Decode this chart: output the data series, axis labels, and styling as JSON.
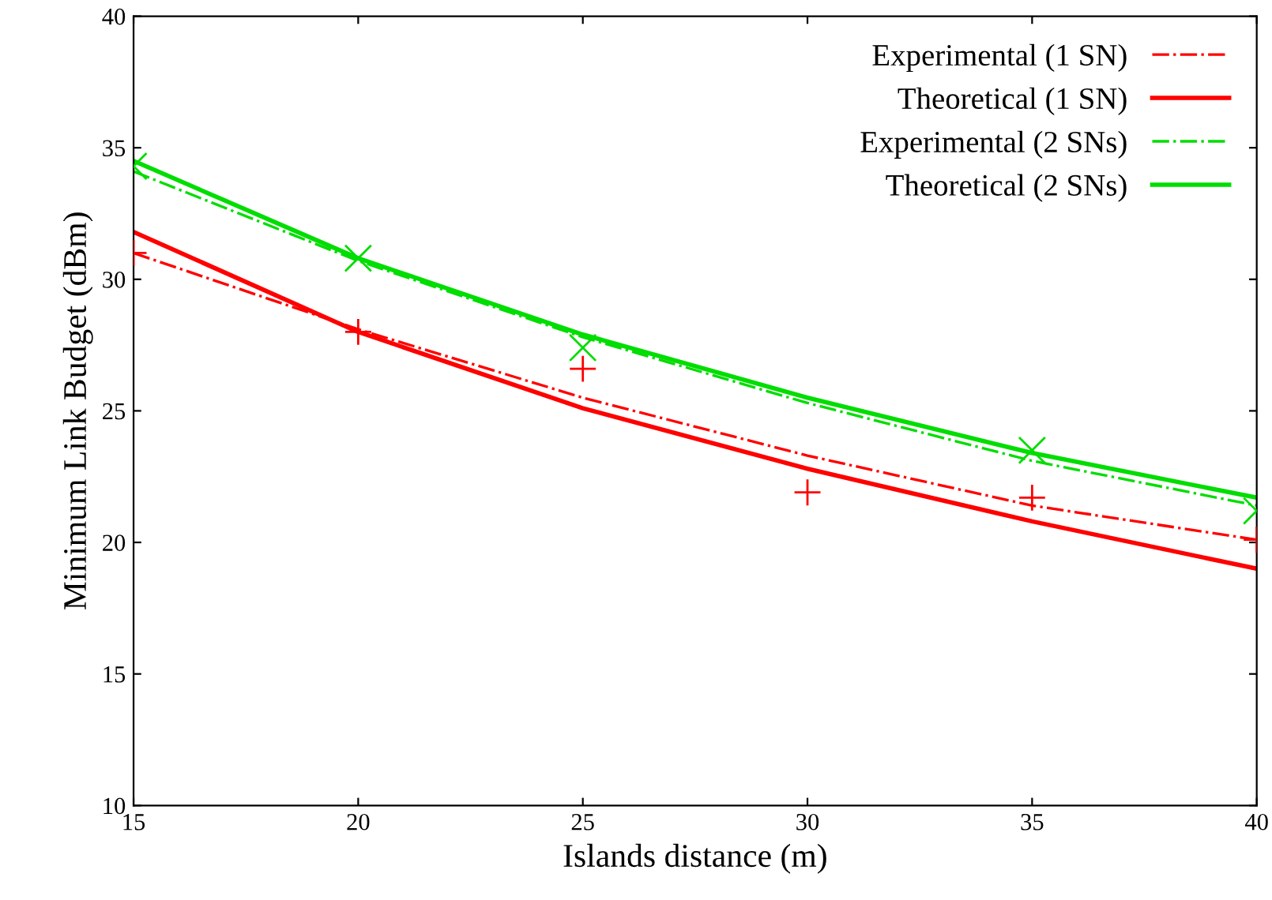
{
  "chart_data": {
    "type": "line",
    "xlabel": "Islands distance (m)",
    "ylabel": "Minimum Link Budget (dBm)",
    "xlim": [
      15,
      40
    ],
    "xticks": [
      15,
      20,
      25,
      30,
      35,
      40
    ],
    "ylim": [
      10,
      40
    ],
    "yticks": [
      10,
      15,
      20,
      25,
      30,
      35,
      40
    ],
    "grid": false,
    "legend": "top right",
    "series": [
      {
        "name": "Experimental (1 SN)",
        "color": "#ff0000",
        "line_style": "dashdot",
        "x": [
          15,
          20,
          25,
          30,
          35,
          40
        ],
        "values": [
          31.0,
          28.1,
          25.5,
          23.3,
          21.4,
          20.1
        ]
      },
      {
        "name": "Theoretical (1 SN)",
        "color": "#ff0000",
        "line_style": "solid",
        "x": [
          15,
          20,
          25,
          30,
          35,
          40
        ],
        "values": [
          31.8,
          28.0,
          25.1,
          22.8,
          20.8,
          19.0
        ]
      },
      {
        "name": "Experimental (2 SNs)",
        "color": "#00dd00",
        "line_style": "dashdot",
        "x": [
          15,
          20,
          25,
          30,
          35,
          40
        ],
        "values": [
          34.1,
          30.7,
          27.8,
          25.3,
          23.1,
          21.4
        ]
      },
      {
        "name": "Theoretical (2 SNs)",
        "color": "#00dd00",
        "line_style": "solid",
        "x": [
          15,
          20,
          25,
          30,
          35,
          40
        ],
        "values": [
          34.5,
          30.8,
          27.9,
          25.5,
          23.4,
          21.7
        ]
      },
      {
        "type": "scatter",
        "marker": "plus",
        "color": "#ff0000",
        "x": [
          15,
          20,
          25,
          30,
          35,
          40
        ],
        "values": [
          31.0,
          28.0,
          26.6,
          21.9,
          21.7,
          20.1
        ]
      },
      {
        "type": "scatter",
        "marker": "cross",
        "color": "#00dd00",
        "x": [
          15,
          20,
          25,
          35,
          40
        ],
        "values": [
          34.3,
          30.8,
          27.4,
          23.5,
          21.2
        ]
      }
    ]
  }
}
